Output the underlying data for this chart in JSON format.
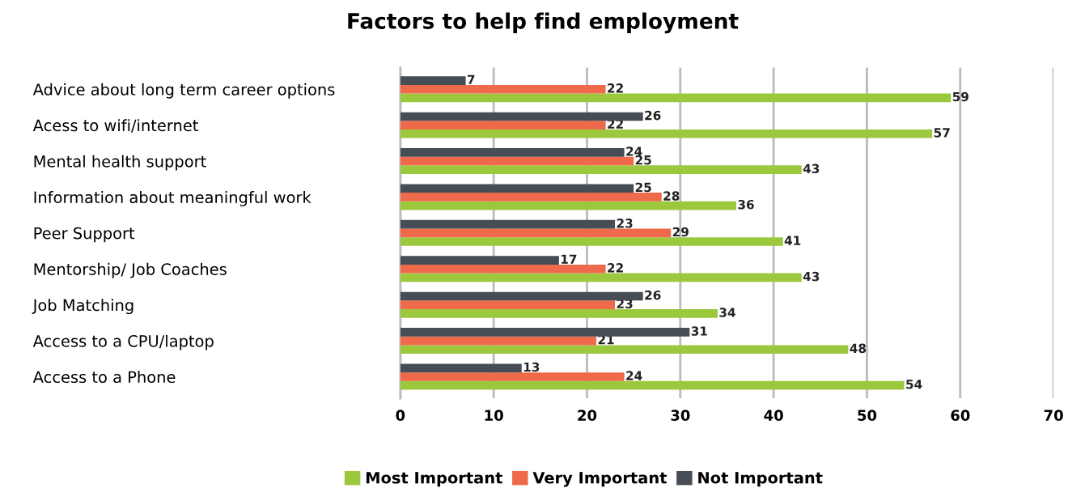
{
  "chart_data": {
    "type": "bar",
    "orientation": "horizontal",
    "title": "Factors to help find employment",
    "categories": [
      "Advice about long term career options",
      "Acess to wifi/internet",
      "Mental health support",
      "Information about meaningful work",
      "Peer Support",
      "Mentorship/ Job Coaches",
      "Job Matching",
      "Access to a CPU/laptop",
      "Access to a Phone"
    ],
    "series": [
      {
        "name": "Most Important",
        "color": "#9bc83c",
        "values": [
          59,
          57,
          43,
          36,
          41,
          43,
          34,
          48,
          54
        ]
      },
      {
        "name": "Very Important",
        "color": "#ee6a4a",
        "values": [
          22,
          22,
          25,
          28,
          29,
          22,
          23,
          21,
          24
        ]
      },
      {
        "name": "Not Important",
        "color": "#474d55",
        "values": [
          7,
          26,
          24,
          25,
          23,
          17,
          26,
          31,
          13
        ]
      }
    ],
    "xlim": [
      0,
      70
    ],
    "xticks": [
      0,
      10,
      20,
      30,
      40,
      50,
      60,
      70
    ],
    "grid": "x",
    "legend": "bottom",
    "data_labels": true
  }
}
